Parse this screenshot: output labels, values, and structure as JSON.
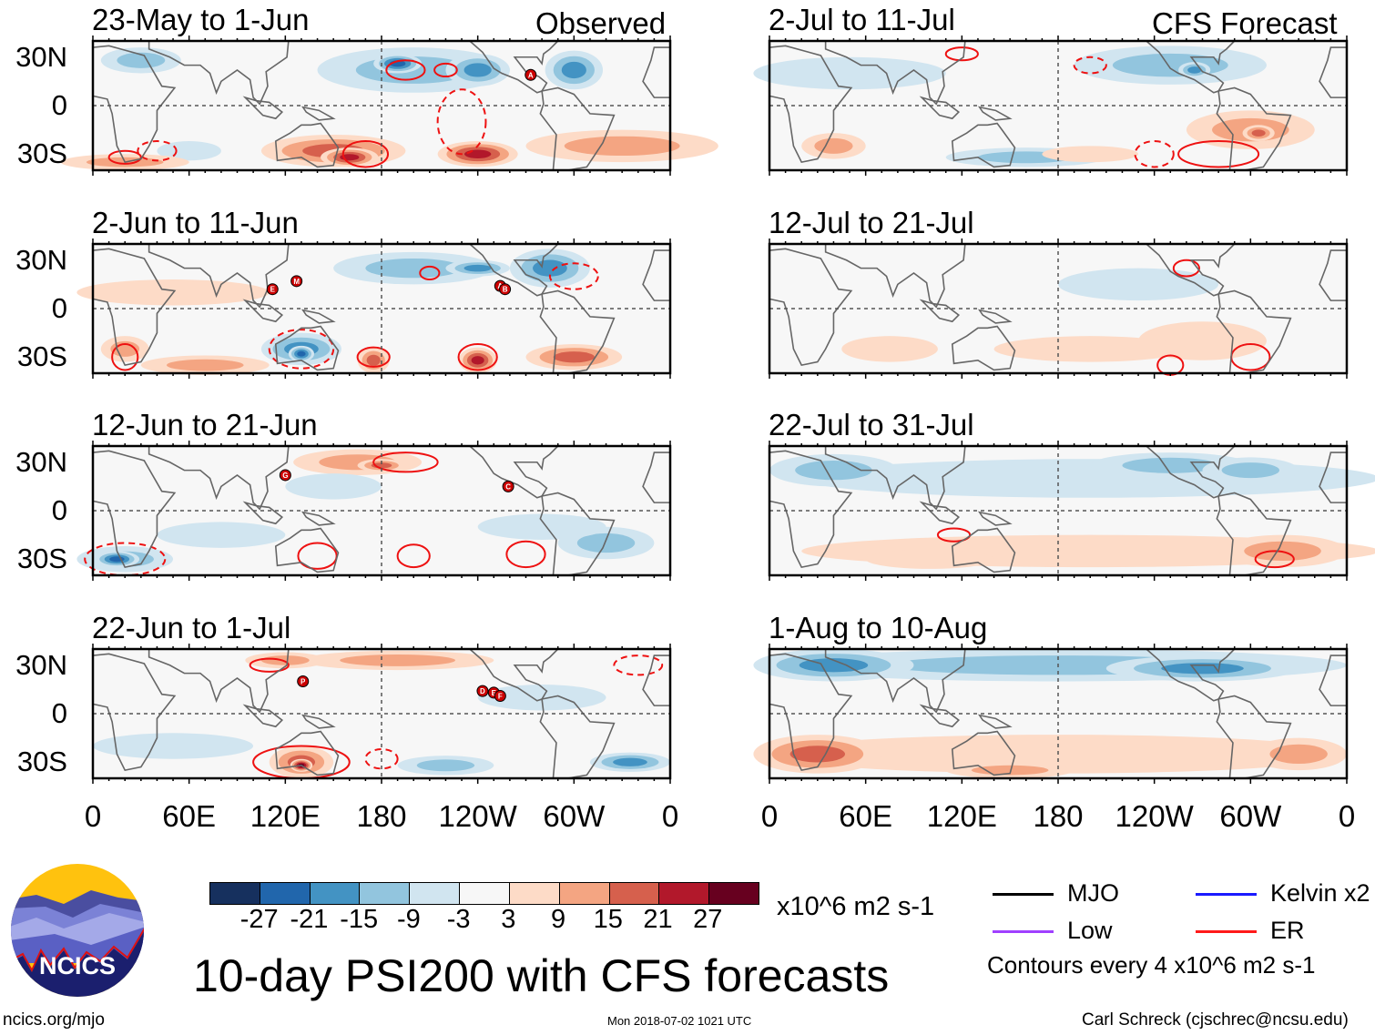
{
  "chart_data": {
    "type": "heatmap",
    "title": "10-day PSI200 with CFS forecasts",
    "variable": "200-hPa streamfunction anomaly",
    "units": "x10^6 m2 s-1",
    "contour_note": "Contours every 4 x10^6 m2 s-1",
    "lat_ticks": [
      "30N",
      "0",
      "30S"
    ],
    "lon_ticks": [
      "0",
      "60E",
      "120E",
      "180",
      "120W",
      "60W",
      "0"
    ],
    "lat_range": [
      -40,
      40
    ],
    "lon_range": [
      0,
      360
    ],
    "columns": {
      "left": "Observed",
      "right": "CFS Forecast"
    },
    "panels": [
      {
        "title": "23-May to 1-Jun",
        "column": "left",
        "storms": [
          {
            "label": "A",
            "lon": 273,
            "lat": 19
          }
        ]
      },
      {
        "title": "2-Jun to 11-Jun",
        "column": "left",
        "storms": [
          {
            "label": "E",
            "lon": 112,
            "lat": 12
          },
          {
            "label": "M",
            "lon": 127,
            "lat": 17
          },
          {
            "label": "A",
            "lon": 254,
            "lat": 14
          },
          {
            "label": "B",
            "lon": 257,
            "lat": 12
          }
        ]
      },
      {
        "title": "12-Jun to 21-Jun",
        "column": "left",
        "storms": [
          {
            "label": "G",
            "lon": 120,
            "lat": 22
          },
          {
            "label": "C",
            "lon": 259,
            "lat": 15
          }
        ]
      },
      {
        "title": "22-Jun to 1-Jul",
        "column": "left",
        "storms": [
          {
            "label": "P",
            "lon": 131,
            "lat": 20
          },
          {
            "label": "D",
            "lon": 243,
            "lat": 14
          },
          {
            "label": "E",
            "lon": 250,
            "lat": 13
          },
          {
            "label": "F",
            "lon": 254,
            "lat": 11
          }
        ]
      },
      {
        "title": "2-Jul to 11-Jul",
        "column": "right",
        "storms": []
      },
      {
        "title": "12-Jul to 21-Jul",
        "column": "right",
        "storms": []
      },
      {
        "title": "22-Jul to 31-Jul",
        "column": "right",
        "storms": []
      },
      {
        "title": "1-Aug to 10-Aug",
        "column": "right",
        "storms": []
      }
    ],
    "colorbar": {
      "levels": [
        "-27",
        "-21",
        "-15",
        "-9",
        "-3",
        "3",
        "9",
        "15",
        "21",
        "27"
      ],
      "colors": [
        "#16305e",
        "#2166ac",
        "#4393c3",
        "#92c5de",
        "#d1e5f0",
        "#f7f7f7",
        "#fddbc7",
        "#f4a582",
        "#d6604d",
        "#b2182b",
        "#67001f"
      ]
    },
    "legend": [
      {
        "label": "MJO",
        "color": "#000000"
      },
      {
        "label": "Kelvin x2",
        "color": "#1a1aff"
      },
      {
        "label": "Low",
        "color": "#a040ff"
      },
      {
        "label": "ER",
        "color": "#ff1a1a"
      }
    ]
  },
  "logo": {
    "text": "NCICS"
  },
  "footer": {
    "url": "ncics.org/mjo",
    "timestamp": "Mon 2018-07-02 1021 UTC",
    "author": "Carl Schreck (cjschrec@ncsu.edu)"
  }
}
